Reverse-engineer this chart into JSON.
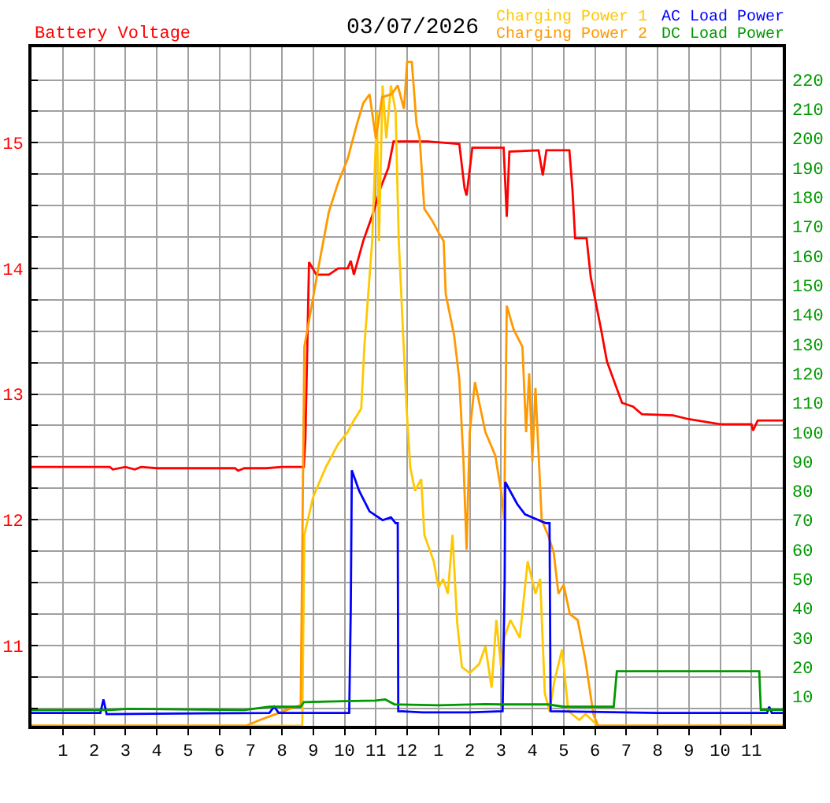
{
  "chart_data": {
    "type": "line",
    "title": "03/07/2026",
    "ylabel": "Battery Voltage",
    "xlim": [
      "2026-03-07T00:00",
      "2026-03-08T00:00"
    ],
    "xticks": [
      {
        "value": "2026-03-07T01:00",
        "label": "1"
      },
      {
        "value": "2026-03-07T02:00",
        "label": "2"
      },
      {
        "value": "2026-03-07T03:00",
        "label": "3"
      },
      {
        "value": "2026-03-07T04:00",
        "label": "4"
      },
      {
        "value": "2026-03-07T05:00",
        "label": "5"
      },
      {
        "value": "2026-03-07T06:00",
        "label": "6"
      },
      {
        "value": "2026-03-07T07:00",
        "label": "7"
      },
      {
        "value": "2026-03-07T08:00",
        "label": "8"
      },
      {
        "value": "2026-03-07T09:00",
        "label": "9"
      },
      {
        "value": "2026-03-07T10:00",
        "label": "10"
      },
      {
        "value": "2026-03-07T11:00",
        "label": "11"
      },
      {
        "value": "2026-03-07T12:00",
        "label": "12"
      },
      {
        "value": "2026-03-07T13:00",
        "label": "1"
      },
      {
        "value": "2026-03-07T14:00",
        "label": "2"
      },
      {
        "value": "2026-03-07T15:00",
        "label": "3"
      },
      {
        "value": "2026-03-07T16:00",
        "label": "4"
      },
      {
        "value": "2026-03-07T17:00",
        "label": "5"
      },
      {
        "value": "2026-03-07T18:00",
        "label": "6"
      },
      {
        "value": "2026-03-07T19:00",
        "label": "7"
      },
      {
        "value": "2026-03-07T20:00",
        "label": "8"
      },
      {
        "value": "2026-03-07T21:00",
        "label": "9"
      },
      {
        "value": "2026-03-07T22:00",
        "label": "10"
      },
      {
        "value": "2026-03-07T23:00",
        "label": "11"
      }
    ],
    "ylim": [
      10.36,
      15.76
    ],
    "yticks": [
      {
        "value": 10.5,
        "label": null
      },
      {
        "value": 10.75,
        "label": null
      },
      11,
      {
        "value": 11.25,
        "label": null
      },
      {
        "value": 11.5,
        "label": null
      },
      {
        "value": 11.75,
        "label": null
      },
      12,
      {
        "value": 12.25,
        "label": null
      },
      {
        "value": 12.5,
        "label": null
      },
      {
        "value": 12.75,
        "label": null
      },
      13,
      {
        "value": 13.25,
        "label": null
      },
      {
        "value": 13.5,
        "label": null
      },
      {
        "value": 13.75,
        "label": null
      },
      14,
      {
        "value": 14.25,
        "label": null
      },
      {
        "value": 14.5,
        "label": null
      },
      {
        "value": 14.75,
        "label": null
      },
      15,
      {
        "value": 15.25,
        "label": null
      },
      {
        "value": 15.5,
        "label": null
      }
    ],
    "y2lim": [
      0,
      231
    ],
    "y2ticks": [
      10,
      20,
      30,
      40,
      50,
      60,
      70,
      80,
      90,
      100,
      110,
      120,
      130,
      140,
      150,
      160,
      170,
      180,
      190,
      200,
      210,
      220
    ],
    "grid": true,
    "legend": "top right",
    "series": [
      {
        "color": "#ff0000",
        "x": [
          "2026-03-07T00:00",
          "2026-03-07T02:30",
          "2026-03-07T02:36",
          "2026-03-07T03:00",
          "2026-03-07T03:18",
          "2026-03-07T03:30",
          "2026-03-07T04:00",
          "2026-03-07T06:30",
          "2026-03-07T06:36",
          "2026-03-07T06:48",
          "2026-03-07T07:30",
          "2026-03-07T08:00",
          "2026-03-07T08:42",
          "2026-03-07T08:45",
          "2026-03-07T08:52",
          "2026-03-07T09:06",
          "2026-03-07T09:30",
          "2026-03-07T09:48",
          "2026-03-07T10:06",
          "2026-03-07T10:12",
          "2026-03-07T10:18",
          "2026-03-07T10:36",
          "2026-03-07T10:54",
          "2026-03-07T11:09",
          "2026-03-07T11:24",
          "2026-03-07T11:34",
          "2026-03-07T12:39",
          "2026-03-07T13:40",
          "2026-03-07T13:50",
          "2026-03-07T13:54",
          "2026-03-07T14:05",
          "2026-03-07T15:05",
          "2026-03-07T15:11",
          "2026-03-07T15:16",
          "2026-03-07T16:12",
          "2026-03-07T16:20",
          "2026-03-07T16:27",
          "2026-03-07T17:11",
          "2026-03-07T17:17",
          "2026-03-07T17:22",
          "2026-03-07T17:44",
          "2026-03-07T17:52",
          "2026-03-07T18:02",
          "2026-03-07T18:12",
          "2026-03-07T18:23",
          "2026-03-07T18:37",
          "2026-03-07T18:52",
          "2026-03-07T19:13",
          "2026-03-07T19:30",
          "2026-03-07T20:30",
          "2026-03-07T21:00",
          "2026-03-07T22:00",
          "2026-03-07T23:00",
          "2026-03-07T23:03",
          "2026-03-07T23:12",
          "2026-03-08T00:00"
        ],
        "values": [
          12.42,
          12.42,
          12.4,
          12.42,
          12.4,
          12.42,
          12.41,
          12.41,
          12.39,
          12.41,
          12.41,
          12.42,
          12.42,
          12.64,
          14.05,
          13.95,
          13.95,
          14.0,
          14.0,
          14.06,
          13.95,
          14.22,
          14.43,
          14.64,
          14.8,
          15.01,
          15.01,
          14.99,
          14.64,
          14.58,
          14.96,
          14.96,
          14.41,
          14.93,
          14.94,
          14.74,
          14.94,
          14.94,
          14.62,
          14.24,
          14.24,
          13.93,
          13.72,
          13.51,
          13.26,
          13.1,
          12.93,
          12.9,
          12.84,
          12.83,
          12.8,
          12.76,
          12.76,
          12.71,
          12.79,
          12.79
        ]
      },
      {
        "name": "Charging Power 1",
        "color": "#ffc800",
        "axis": "y2",
        "x": [
          "2026-03-07T00:00",
          "2026-03-07T08:39",
          "2026-03-07T08:43",
          "2026-03-07T09:00",
          "2026-03-07T09:24",
          "2026-03-07T09:48",
          "2026-03-07T10:06",
          "2026-03-07T10:18",
          "2026-03-07T10:32",
          "2026-03-07T10:38",
          "2026-03-07T10:53",
          "2026-03-07T11:02",
          "2026-03-07T11:06",
          "2026-03-07T11:13",
          "2026-03-07T11:20",
          "2026-03-07T11:29",
          "2026-03-07T11:38",
          "2026-03-07T11:44",
          "2026-03-07T11:59",
          "2026-03-07T12:06",
          "2026-03-07T12:15",
          "2026-03-07T12:27",
          "2026-03-07T12:33",
          "2026-03-07T12:51",
          "2026-03-07T13:00",
          "2026-03-07T13:09",
          "2026-03-07T13:18",
          "2026-03-07T13:27",
          "2026-03-07T13:36",
          "2026-03-07T13:45",
          "2026-03-07T14:00",
          "2026-03-07T14:18",
          "2026-03-07T14:30",
          "2026-03-07T14:42",
          "2026-03-07T14:51",
          "2026-03-07T15:00",
          "2026-03-07T15:06",
          "2026-03-07T15:18",
          "2026-03-07T15:36",
          "2026-03-07T15:51",
          "2026-03-07T16:06",
          "2026-03-07T16:15",
          "2026-03-07T16:24",
          "2026-03-07T16:33",
          "2026-03-07T16:42",
          "2026-03-07T16:57",
          "2026-03-07T17:09",
          "2026-03-07T17:30",
          "2026-03-07T17:42",
          "2026-03-07T18:06",
          "2026-03-08T00:00"
        ],
        "values": [
          0,
          0,
          65,
          78,
          88,
          96,
          100,
          104,
          108,
          129,
          165,
          209,
          165,
          218,
          200,
          218,
          209,
          165,
          108,
          88,
          80,
          84,
          65,
          56,
          47,
          50,
          45,
          65,
          35,
          20,
          18,
          21,
          27,
          13,
          36,
          20,
          30,
          36,
          30,
          56,
          45,
          50,
          11,
          5,
          15,
          26,
          5,
          2,
          4,
          0,
          0
        ]
      },
      {
        "name": "Charging Power 2",
        "color": "#ff9900",
        "axis": "y2",
        "x": [
          "2026-03-07T00:00",
          "2026-03-07T06:51",
          "2026-03-07T07:18",
          "2026-03-07T07:48",
          "2026-03-07T08:18",
          "2026-03-07T08:36",
          "2026-03-07T08:43",
          "2026-03-07T08:54",
          "2026-03-07T09:12",
          "2026-03-07T09:30",
          "2026-03-07T09:48",
          "2026-03-07T10:06",
          "2026-03-07T10:24",
          "2026-03-07T10:36",
          "2026-03-07T10:48",
          "2026-03-07T11:00",
          "2026-03-07T11:12",
          "2026-03-07T11:30",
          "2026-03-07T11:42",
          "2026-03-07T11:54",
          "2026-03-07T12:00",
          "2026-03-07T12:09",
          "2026-03-07T12:18",
          "2026-03-07T12:24",
          "2026-03-07T12:33",
          "2026-03-07T12:48",
          "2026-03-07T13:00",
          "2026-03-07T13:10",
          "2026-03-07T13:14",
          "2026-03-07T13:30",
          "2026-03-07T13:40",
          "2026-03-07T13:48",
          "2026-03-07T13:54",
          "2026-03-07T14:00",
          "2026-03-07T14:10",
          "2026-03-07T14:30",
          "2026-03-07T14:49",
          "2026-03-07T15:01",
          "2026-03-07T15:06",
          "2026-03-07T15:11",
          "2026-03-07T15:24",
          "2026-03-07T15:41",
          "2026-03-07T15:48",
          "2026-03-07T15:54",
          "2026-03-07T16:00",
          "2026-03-07T16:06",
          "2026-03-07T16:18",
          "2026-03-07T16:30",
          "2026-03-07T16:41",
          "2026-03-07T16:50",
          "2026-03-07T17:00",
          "2026-03-07T17:12",
          "2026-03-07T17:27",
          "2026-03-07T17:42",
          "2026-03-07T17:57",
          "2026-03-07T18:06",
          "2026-03-08T00:00"
        ],
        "values": [
          0,
          0,
          2,
          4,
          6,
          7,
          129,
          140,
          158,
          175,
          185,
          193,
          205,
          212,
          215,
          200,
          214,
          215,
          218,
          210,
          226,
          226,
          205,
          200,
          176,
          172,
          168,
          165,
          147,
          133,
          118,
          90,
          60,
          100,
          117,
          100,
          92,
          79,
          70,
          143,
          135,
          129,
          100,
          120,
          90,
          115,
          70,
          65,
          59,
          45,
          48,
          38,
          36,
          22,
          4,
          0,
          0
        ]
      },
      {
        "name": "AC Load Power",
        "color": "#0000ff",
        "axis": "y2",
        "x": [
          "2026-03-07T00:00",
          "2026-03-07T02:12",
          "2026-03-07T02:18",
          "2026-03-07T02:24",
          "2026-03-07T07:36",
          "2026-03-07T07:45",
          "2026-03-07T07:54",
          "2026-03-07T10:09",
          "2026-03-07T10:12",
          "2026-03-07T10:14",
          "2026-03-07T10:28",
          "2026-03-07T10:48",
          "2026-03-07T11:13",
          "2026-03-07T11:29",
          "2026-03-07T11:38",
          "2026-03-07T11:42",
          "2026-03-07T11:43",
          "2026-03-07T12:30",
          "2026-03-07T14:00",
          "2026-03-07T15:03",
          "2026-03-07T15:07",
          "2026-03-07T15:08",
          "2026-03-07T15:31",
          "2026-03-07T15:46",
          "2026-03-07T16:06",
          "2026-03-07T16:26",
          "2026-03-07T16:33",
          "2026-03-07T16:35",
          "2026-03-07T20:00",
          "2026-03-07T23:30",
          "2026-03-07T23:34",
          "2026-03-07T23:39",
          "2026-03-08T00:00"
        ],
        "values": [
          4.4,
          4.4,
          9,
          4,
          4.4,
          6.5,
          4.4,
          4.4,
          40,
          87,
          80,
          73,
          70,
          71,
          69,
          69,
          5,
          4.6,
          4.6,
          5,
          50,
          83,
          75.5,
          72,
          70.5,
          69,
          69,
          5,
          4.4,
          4.4,
          6.5,
          4.4,
          4.4
        ]
      },
      {
        "name": "DC Load Power",
        "color": "#009900",
        "axis": "y2",
        "x": [
          "2026-03-07T00:00",
          "2026-03-07T02:30",
          "2026-03-07T03:06",
          "2026-03-07T06:48",
          "2026-03-07T07:36",
          "2026-03-07T08:36",
          "2026-03-07T08:42",
          "2026-03-07T10:00",
          "2026-03-07T11:00",
          "2026-03-07T11:18",
          "2026-03-07T11:36",
          "2026-03-07T13:00",
          "2026-03-07T14:30",
          "2026-03-07T15:00",
          "2026-03-07T16:30",
          "2026-03-07T17:00",
          "2026-03-07T18:36",
          "2026-03-07T18:42",
          "2026-03-07T23:15",
          "2026-03-07T23:18",
          "2026-03-08T00:00"
        ],
        "values": [
          5.4,
          5.4,
          5.8,
          5.4,
          6.5,
          6.5,
          8.1,
          8.4,
          8.6,
          9,
          7.3,
          7.0,
          7.4,
          7.3,
          7.3,
          6.5,
          6.5,
          18.6,
          18.6,
          5.5,
          5.5
        ]
      }
    ]
  }
}
